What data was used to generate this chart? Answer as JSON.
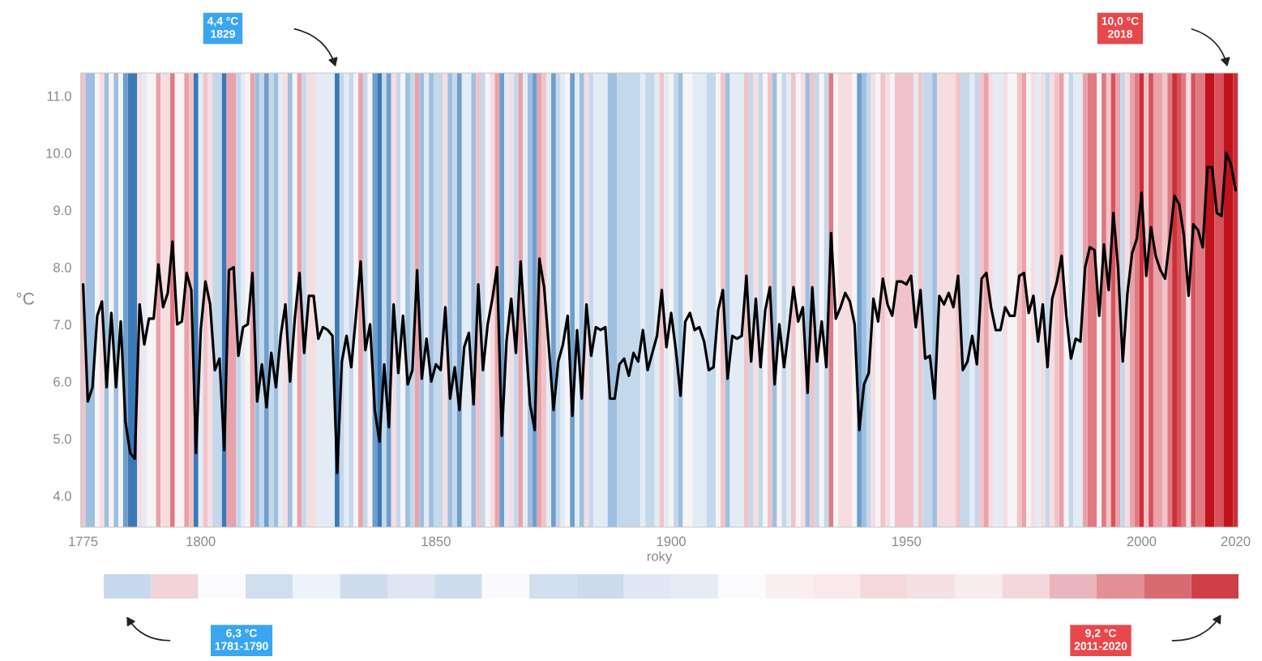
{
  "chart_data": [
    {
      "type": "line",
      "xlabel": "roky",
      "ylabel": "°C",
      "x": [
        1775,
        1776,
        1777,
        1778,
        1779,
        1780,
        1781,
        1782,
        1783,
        1784,
        1785,
        1786,
        1787,
        1788,
        1789,
        1790,
        1791,
        1792,
        1793,
        1794,
        1795,
        1796,
        1797,
        1798,
        1799,
        1800,
        1801,
        1802,
        1803,
        1804,
        1805,
        1806,
        1807,
        1808,
        1809,
        1810,
        1811,
        1812,
        1813,
        1814,
        1815,
        1816,
        1817,
        1818,
        1819,
        1820,
        1821,
        1822,
        1823,
        1824,
        1825,
        1826,
        1827,
        1828,
        1829,
        1830,
        1831,
        1832,
        1833,
        1834,
        1835,
        1836,
        1837,
        1838,
        1839,
        1840,
        1841,
        1842,
        1843,
        1844,
        1845,
        1846,
        1847,
        1848,
        1849,
        1850,
        1851,
        1852,
        1853,
        1854,
        1855,
        1856,
        1857,
        1858,
        1859,
        1860,
        1861,
        1862,
        1863,
        1864,
        1865,
        1866,
        1867,
        1868,
        1869,
        1870,
        1871,
        1872,
        1873,
        1874,
        1875,
        1876,
        1877,
        1878,
        1879,
        1880,
        1881,
        1882,
        1883,
        1884,
        1885,
        1886,
        1887,
        1888,
        1889,
        1890,
        1891,
        1892,
        1893,
        1894,
        1895,
        1896,
        1897,
        1898,
        1899,
        1900,
        1901,
        1902,
        1903,
        1904,
        1905,
        1906,
        1907,
        1908,
        1909,
        1910,
        1911,
        1912,
        1913,
        1914,
        1915,
        1916,
        1917,
        1918,
        1919,
        1920,
        1921,
        1922,
        1923,
        1924,
        1925,
        1926,
        1927,
        1928,
        1929,
        1930,
        1931,
        1932,
        1933,
        1934,
        1935,
        1936,
        1937,
        1938,
        1939,
        1940,
        1941,
        1942,
        1943,
        1944,
        1945,
        1946,
        1947,
        1948,
        1949,
        1950,
        1951,
        1952,
        1953,
        1954,
        1955,
        1956,
        1957,
        1958,
        1959,
        1960,
        1961,
        1962,
        1963,
        1964,
        1965,
        1966,
        1967,
        1968,
        1969,
        1970,
        1971,
        1972,
        1973,
        1974,
        1975,
        1976,
        1977,
        1978,
        1979,
        1980,
        1981,
        1982,
        1983,
        1984,
        1985,
        1986,
        1987,
        1988,
        1989,
        1990,
        1991,
        1992,
        1993,
        1994,
        1995,
        1996,
        1997,
        1998,
        1999,
        2000,
        2001,
        2002,
        2003,
        2004,
        2005,
        2006,
        2007,
        2008,
        2009,
        2010,
        2011,
        2012,
        2013,
        2014,
        2015,
        2016,
        2017,
        2018,
        2019,
        2020
      ],
      "series": [
        {
          "color": "#000000",
          "values": [
            7.7,
            5.65,
            5.9,
            7.15,
            7.4,
            5.9,
            7.2,
            5.9,
            7.05,
            5.3,
            4.75,
            4.65,
            7.35,
            6.65,
            7.1,
            7.1,
            8.05,
            7.3,
            7.55,
            8.45,
            7.0,
            7.05,
            7.9,
            7.6,
            4.75,
            6.9,
            7.75,
            7.35,
            6.2,
            6.4,
            4.8,
            7.95,
            8.0,
            6.45,
            6.95,
            7.0,
            7.9,
            5.65,
            6.3,
            5.55,
            6.5,
            5.9,
            6.8,
            7.35,
            6.0,
            7.1,
            7.9,
            6.5,
            7.5,
            7.5,
            6.75,
            6.95,
            6.9,
            6.8,
            4.4,
            6.35,
            6.8,
            6.25,
            7.15,
            8.1,
            6.55,
            7.0,
            5.5,
            4.95,
            6.3,
            5.2,
            7.35,
            6.15,
            7.15,
            5.95,
            6.2,
            7.95,
            6.05,
            6.75,
            6.0,
            6.3,
            6.2,
            7.3,
            5.7,
            6.25,
            5.5,
            6.6,
            6.85,
            5.6,
            7.7,
            6.2,
            7.0,
            7.45,
            8.0,
            5.05,
            6.7,
            7.45,
            6.5,
            8.1,
            6.85,
            5.6,
            5.15,
            8.15,
            7.65,
            6.6,
            5.5,
            6.35,
            6.65,
            7.15,
            5.4,
            6.9,
            5.7,
            7.35,
            6.45,
            6.95,
            6.9,
            6.95,
            5.7,
            5.7,
            6.3,
            6.4,
            6.1,
            6.5,
            6.35,
            6.9,
            6.2,
            6.5,
            6.8,
            7.6,
            6.6,
            7.2,
            6.55,
            5.75,
            7.05,
            7.2,
            6.9,
            6.95,
            6.7,
            6.2,
            6.25,
            7.25,
            7.6,
            6.05,
            6.8,
            6.75,
            6.8,
            7.85,
            6.35,
            7.45,
            6.25,
            7.25,
            7.65,
            5.95,
            7.0,
            6.25,
            6.9,
            7.65,
            7.05,
            7.3,
            5.8,
            7.65,
            6.35,
            7.05,
            6.25,
            8.6,
            7.1,
            7.3,
            7.55,
            7.4,
            7.0,
            5.15,
            5.95,
            6.15,
            7.45,
            7.05,
            7.8,
            7.35,
            7.15,
            7.75,
            7.75,
            7.7,
            7.85,
            6.95,
            7.6,
            6.4,
            6.45,
            5.7,
            7.5,
            7.35,
            7.55,
            7.3,
            7.85,
            6.2,
            6.35,
            6.8,
            6.3,
            7.8,
            7.9,
            7.3,
            6.9,
            6.9,
            7.3,
            7.15,
            7.15,
            7.85,
            7.9,
            7.2,
            7.5,
            6.7,
            7.35,
            6.25,
            7.45,
            7.75,
            8.2,
            7.15,
            6.4,
            6.75,
            6.7,
            8.0,
            8.35,
            8.3,
            7.15,
            8.4,
            7.6,
            8.95,
            8.0,
            6.35,
            7.55,
            8.25,
            8.5,
            9.3,
            7.85,
            8.7,
            8.2,
            7.95,
            7.8,
            8.5,
            9.25,
            9.1,
            8.55,
            7.5,
            8.75,
            8.65,
            8.35,
            9.75,
            9.75,
            8.95,
            8.9,
            10.0,
            9.8,
            9.35
          ]
        }
      ],
      "xlim": [
        1774.5,
        2020.5
      ],
      "xticks": [
        1775,
        1800,
        1850,
        1900,
        1950,
        2000,
        2020
      ],
      "ylim": [
        3.45,
        11.4
      ],
      "yticks": [
        {
          "value": 4,
          "label": "4.0"
        },
        {
          "value": 5,
          "label": "5.0"
        },
        {
          "value": 6,
          "label": "6.0"
        },
        {
          "value": 7,
          "label": "7.0"
        },
        {
          "value": 8,
          "label": "8.0"
        },
        {
          "value": 9,
          "label": "9.0"
        },
        {
          "value": 10,
          "label": "10.0"
        },
        {
          "value": 11,
          "label": "11.0"
        }
      ],
      "annotations": [
        "4,4 °C\n1829",
        "10,0 °C\n2018"
      ],
      "bands": [
        {
          "axis": "x",
          "from": 1774.5,
          "to": 1775.5,
          "color": "#f1c3c8"
        },
        {
          "axis": "x",
          "from": 1775.5,
          "to": 1777.5,
          "color": "#9dbfe0"
        },
        {
          "axis": "x",
          "from": 1777.5,
          "to": 1778.5,
          "color": "#f7f4f6"
        },
        {
          "axis": "x",
          "from": 1778.5,
          "to": 1779.5,
          "color": "#f5dde1"
        },
        {
          "axis": "x",
          "from": 1779.5,
          "to": 1780.5,
          "color": "#9dbfe0"
        },
        {
          "axis": "x",
          "from": 1780.5,
          "to": 1781.5,
          "color": "#f7f4f6"
        },
        {
          "axis": "x",
          "from": 1781.5,
          "to": 1782.5,
          "color": "#9dbfe0"
        },
        {
          "axis": "x",
          "from": 1782.5,
          "to": 1783.5,
          "color": "#f7f4f6"
        },
        {
          "axis": "x",
          "from": 1783.5,
          "to": 1784.5,
          "color": "#6e9ecc"
        },
        {
          "axis": "x",
          "from": 1784.5,
          "to": 1786.5,
          "color": "#3b78b6"
        },
        {
          "axis": "x",
          "from": 1786.5,
          "to": 1787.5,
          "color": "#f5dde1"
        },
        {
          "axis": "x",
          "from": 1787.5,
          "to": 1788.5,
          "color": "#e3ebf5"
        },
        {
          "axis": "x",
          "from": 1788.5,
          "to": 1790.5,
          "color": "#f7f4f6"
        },
        {
          "axis": "x",
          "from": 1790.5,
          "to": 1791.5,
          "color": "#e9a2a9"
        },
        {
          "axis": "x",
          "from": 1791.5,
          "to": 1793.5,
          "color": "#f5dde1"
        },
        {
          "axis": "x",
          "from": 1793.5,
          "to": 1794.5,
          "color": "#df7a82"
        },
        {
          "axis": "x",
          "from": 1794.5,
          "to": 1796.5,
          "color": "#f7f4f6"
        },
        {
          "axis": "x",
          "from": 1796.5,
          "to": 1797.5,
          "color": "#e9a2a9"
        },
        {
          "axis": "x",
          "from": 1797.5,
          "to": 1798.5,
          "color": "#f1c3c8"
        },
        {
          "axis": "x",
          "from": 1798.5,
          "to": 1799.5,
          "color": "#3b78b6"
        },
        {
          "axis": "x",
          "from": 1799.5,
          "to": 1800.5,
          "color": "#e3ebf5"
        },
        {
          "axis": "x",
          "from": 1800.5,
          "to": 1801.5,
          "color": "#f1c3c8"
        },
        {
          "axis": "x",
          "from": 1801.5,
          "to": 1802.5,
          "color": "#f5dde1"
        },
        {
          "axis": "x",
          "from": 1802.5,
          "to": 1804.5,
          "color": "#c4d8ec"
        },
        {
          "axis": "x",
          "from": 1804.5,
          "to": 1805.5,
          "color": "#3b78b6"
        },
        {
          "axis": "x",
          "from": 1805.5,
          "to": 1807.5,
          "color": "#e9a2a9"
        },
        {
          "axis": "x",
          "from": 1807.5,
          "to": 1808.5,
          "color": "#c4d8ec"
        },
        {
          "axis": "x",
          "from": 1808.5,
          "to": 1809.5,
          "color": "#e3ebf5"
        },
        {
          "axis": "x",
          "from": 1809.5,
          "to": 1810.5,
          "color": "#f7f4f6"
        },
        {
          "axis": "x",
          "from": 1810.5,
          "to": 1811.5,
          "color": "#e9a2a9"
        },
        {
          "axis": "x",
          "from": 1811.5,
          "to": 1812.5,
          "color": "#9dbfe0"
        },
        {
          "axis": "x",
          "from": 1812.5,
          "to": 1813.5,
          "color": "#c4d8ec"
        },
        {
          "axis": "x",
          "from": 1813.5,
          "to": 1814.5,
          "color": "#6e9ecc"
        },
        {
          "axis": "x",
          "from": 1814.5,
          "to": 1815.5,
          "color": "#c4d8ec"
        },
        {
          "axis": "x",
          "from": 1815.5,
          "to": 1816.5,
          "color": "#9dbfe0"
        },
        {
          "axis": "x",
          "from": 1816.5,
          "to": 1817.5,
          "color": "#e3ebf5"
        },
        {
          "axis": "x",
          "from": 1817.5,
          "to": 1818.5,
          "color": "#f5dde1"
        },
        {
          "axis": "x",
          "from": 1818.5,
          "to": 1819.5,
          "color": "#9dbfe0"
        },
        {
          "axis": "x",
          "from": 1819.5,
          "to": 1820.5,
          "color": "#f7f4f6"
        },
        {
          "axis": "x",
          "from": 1820.5,
          "to": 1821.5,
          "color": "#e9a2a9"
        },
        {
          "axis": "x",
          "from": 1821.5,
          "to": 1822.5,
          "color": "#c4d8ec"
        },
        {
          "axis": "x",
          "from": 1822.5,
          "to": 1824.5,
          "color": "#f5dde1"
        },
        {
          "axis": "x",
          "from": 1824.5,
          "to": 1828.5,
          "color": "#e3ebf5"
        },
        {
          "axis": "x",
          "from": 1828.5,
          "to": 1829.5,
          "color": "#3b78b6"
        },
        {
          "axis": "x",
          "from": 1829.5,
          "to": 1830.5,
          "color": "#c4d8ec"
        },
        {
          "axis": "x",
          "from": 1830.5,
          "to": 1831.5,
          "color": "#e3ebf5"
        },
        {
          "axis": "x",
          "from": 1831.5,
          "to": 1832.5,
          "color": "#c4d8ec"
        },
        {
          "axis": "x",
          "from": 1832.5,
          "to": 1833.5,
          "color": "#f7f4f6"
        },
        {
          "axis": "x",
          "from": 1833.5,
          "to": 1834.5,
          "color": "#e9a2a9"
        },
        {
          "axis": "x",
          "from": 1834.5,
          "to": 1835.5,
          "color": "#c4d8ec"
        },
        {
          "axis": "x",
          "from": 1835.5,
          "to": 1836.5,
          "color": "#f7f4f6"
        },
        {
          "axis": "x",
          "from": 1836.5,
          "to": 1837.5,
          "color": "#6e9ecc"
        },
        {
          "axis": "x",
          "from": 1837.5,
          "to": 1838.5,
          "color": "#3b78b6"
        },
        {
          "axis": "x",
          "from": 1838.5,
          "to": 1839.5,
          "color": "#c4d8ec"
        },
        {
          "axis": "x",
          "from": 1839.5,
          "to": 1840.5,
          "color": "#6e9ecc"
        },
        {
          "axis": "x",
          "from": 1840.5,
          "to": 1841.5,
          "color": "#f5dde1"
        },
        {
          "axis": "x",
          "from": 1841.5,
          "to": 1842.5,
          "color": "#c4d8ec"
        },
        {
          "axis": "x",
          "from": 1842.5,
          "to": 1843.5,
          "color": "#f7f4f6"
        },
        {
          "axis": "x",
          "from": 1843.5,
          "to": 1844.5,
          "color": "#9dbfe0"
        },
        {
          "axis": "x",
          "from": 1844.5,
          "to": 1845.5,
          "color": "#c4d8ec"
        },
        {
          "axis": "x",
          "from": 1845.5,
          "to": 1846.5,
          "color": "#e9a2a9"
        },
        {
          "axis": "x",
          "from": 1846.5,
          "to": 1847.5,
          "color": "#9dbfe0"
        },
        {
          "axis": "x",
          "from": 1847.5,
          "to": 1848.5,
          "color": "#e3ebf5"
        },
        {
          "axis": "x",
          "from": 1848.5,
          "to": 1849.5,
          "color": "#9dbfe0"
        },
        {
          "axis": "x",
          "from": 1849.5,
          "to": 1851.5,
          "color": "#c4d8ec"
        },
        {
          "axis": "x",
          "from": 1851.5,
          "to": 1852.5,
          "color": "#f5dde1"
        },
        {
          "axis": "x",
          "from": 1852.5,
          "to": 1853.5,
          "color": "#9dbfe0"
        },
        {
          "axis": "x",
          "from": 1853.5,
          "to": 1854.5,
          "color": "#c4d8ec"
        },
        {
          "axis": "x",
          "from": 1854.5,
          "to": 1855.5,
          "color": "#6e9ecc"
        },
        {
          "axis": "x",
          "from": 1855.5,
          "to": 1857.5,
          "color": "#e3ebf5"
        },
        {
          "axis": "x",
          "from": 1857.5,
          "to": 1858.5,
          "color": "#9dbfe0"
        },
        {
          "axis": "x",
          "from": 1858.5,
          "to": 1859.5,
          "color": "#f1c3c8"
        },
        {
          "axis": "x",
          "from": 1859.5,
          "to": 1860.5,
          "color": "#c4d8ec"
        },
        {
          "axis": "x",
          "from": 1860.5,
          "to": 1861.5,
          "color": "#f7f4f6"
        },
        {
          "axis": "x",
          "from": 1861.5,
          "to": 1862.5,
          "color": "#f5dde1"
        },
        {
          "axis": "x",
          "from": 1862.5,
          "to": 1863.5,
          "color": "#e9a2a9"
        },
        {
          "axis": "x",
          "from": 1863.5,
          "to": 1864.5,
          "color": "#6e9ecc"
        },
        {
          "axis": "x",
          "from": 1864.5,
          "to": 1865.5,
          "color": "#e3ebf5"
        },
        {
          "axis": "x",
          "from": 1865.5,
          "to": 1866.5,
          "color": "#f5dde1"
        },
        {
          "axis": "x",
          "from": 1866.5,
          "to": 1867.5,
          "color": "#c4d8ec"
        },
        {
          "axis": "x",
          "from": 1867.5,
          "to": 1868.5,
          "color": "#e9a2a9"
        },
        {
          "axis": "x",
          "from": 1868.5,
          "to": 1869.5,
          "color": "#e3ebf5"
        },
        {
          "axis": "x",
          "from": 1869.5,
          "to": 1870.5,
          "color": "#9dbfe0"
        },
        {
          "axis": "x",
          "from": 1870.5,
          "to": 1871.5,
          "color": "#6e9ecc"
        },
        {
          "axis": "x",
          "from": 1871.5,
          "to": 1872.5,
          "color": "#e9a2a9"
        },
        {
          "axis": "x",
          "from": 1872.5,
          "to": 1873.5,
          "color": "#f1c3c8"
        },
        {
          "axis": "x",
          "from": 1873.5,
          "to": 1874.5,
          "color": "#e3ebf5"
        },
        {
          "axis": "x",
          "from": 1874.5,
          "to": 1875.5,
          "color": "#6e9ecc"
        },
        {
          "axis": "x",
          "from": 1875.5,
          "to": 1876.5,
          "color": "#c4d8ec"
        },
        {
          "axis": "x",
          "from": 1876.5,
          "to": 1877.5,
          "color": "#e3ebf5"
        },
        {
          "axis": "x",
          "from": 1877.5,
          "to": 1878.5,
          "color": "#f7f4f6"
        },
        {
          "axis": "x",
          "from": 1878.5,
          "to": 1879.5,
          "color": "#6e9ecc"
        },
        {
          "axis": "x",
          "from": 1879.5,
          "to": 1880.5,
          "color": "#e3ebf5"
        },
        {
          "axis": "x",
          "from": 1880.5,
          "to": 1881.5,
          "color": "#9dbfe0"
        },
        {
          "axis": "x",
          "from": 1881.5,
          "to": 1882.5,
          "color": "#f5dde1"
        },
        {
          "axis": "x",
          "from": 1882.5,
          "to": 1883.5,
          "color": "#c4d8ec"
        },
        {
          "axis": "x",
          "from": 1883.5,
          "to": 1886.5,
          "color": "#e3ebf5"
        },
        {
          "axis": "x",
          "from": 1886.5,
          "to": 1888.5,
          "color": "#9dbfe0"
        },
        {
          "axis": "x",
          "from": 1888.5,
          "to": 1893.5,
          "color": "#c4d8ec"
        },
        {
          "axis": "x",
          "from": 1893.5,
          "to": 1894.5,
          "color": "#e3ebf5"
        },
        {
          "axis": "x",
          "from": 1894.5,
          "to": 1896.5,
          "color": "#c4d8ec"
        },
        {
          "axis": "x",
          "from": 1896.5,
          "to": 1897.5,
          "color": "#e3ebf5"
        },
        {
          "axis": "x",
          "from": 1897.5,
          "to": 1898.5,
          "color": "#f1c3c8"
        },
        {
          "axis": "x",
          "from": 1898.5,
          "to": 1899.5,
          "color": "#e3ebf5"
        },
        {
          "axis": "x",
          "from": 1899.5,
          "to": 1900.5,
          "color": "#f7f4f6"
        },
        {
          "axis": "x",
          "from": 1900.5,
          "to": 1901.5,
          "color": "#c4d8ec"
        },
        {
          "axis": "x",
          "from": 1901.5,
          "to": 1902.5,
          "color": "#9dbfe0"
        },
        {
          "axis": "x",
          "from": 1902.5,
          "to": 1904.5,
          "color": "#f7f4f6"
        },
        {
          "axis": "x",
          "from": 1904.5,
          "to": 1907.5,
          "color": "#e3ebf5"
        },
        {
          "axis": "x",
          "from": 1907.5,
          "to": 1909.5,
          "color": "#c4d8ec"
        },
        {
          "axis": "x",
          "from": 1909.5,
          "to": 1910.5,
          "color": "#f7f4f6"
        },
        {
          "axis": "x",
          "from": 1910.5,
          "to": 1911.5,
          "color": "#f1c3c8"
        },
        {
          "axis": "x",
          "from": 1911.5,
          "to": 1912.5,
          "color": "#9dbfe0"
        },
        {
          "axis": "x",
          "from": 1912.5,
          "to": 1915.5,
          "color": "#e3ebf5"
        },
        {
          "axis": "x",
          "from": 1915.5,
          "to": 1916.5,
          "color": "#f1c3c8"
        },
        {
          "axis": "x",
          "from": 1916.5,
          "to": 1917.5,
          "color": "#c4d8ec"
        },
        {
          "axis": "x",
          "from": 1917.5,
          "to": 1918.5,
          "color": "#f5dde1"
        },
        {
          "axis": "x",
          "from": 1918.5,
          "to": 1919.5,
          "color": "#c4d8ec"
        },
        {
          "axis": "x",
          "from": 1919.5,
          "to": 1920.5,
          "color": "#f7f4f6"
        },
        {
          "axis": "x",
          "from": 1920.5,
          "to": 1921.5,
          "color": "#f1c3c8"
        },
        {
          "axis": "x",
          "from": 1921.5,
          "to": 1922.5,
          "color": "#9dbfe0"
        },
        {
          "axis": "x",
          "from": 1922.5,
          "to": 1923.5,
          "color": "#f7f4f6"
        },
        {
          "axis": "x",
          "from": 1923.5,
          "to": 1924.5,
          "color": "#c4d8ec"
        },
        {
          "axis": "x",
          "from": 1924.5,
          "to": 1925.5,
          "color": "#e3ebf5"
        },
        {
          "axis": "x",
          "from": 1925.5,
          "to": 1926.5,
          "color": "#f1c3c8"
        },
        {
          "axis": "x",
          "from": 1926.5,
          "to": 1927.5,
          "color": "#f7f4f6"
        },
        {
          "axis": "x",
          "from": 1927.5,
          "to": 1928.5,
          "color": "#f5dde1"
        },
        {
          "axis": "x",
          "from": 1928.5,
          "to": 1929.5,
          "color": "#9dbfe0"
        },
        {
          "axis": "x",
          "from": 1929.5,
          "to": 1930.5,
          "color": "#f1c3c8"
        },
        {
          "axis": "x",
          "from": 1930.5,
          "to": 1931.5,
          "color": "#c4d8ec"
        },
        {
          "axis": "x",
          "from": 1931.5,
          "to": 1932.5,
          "color": "#f7f4f6"
        },
        {
          "axis": "x",
          "from": 1932.5,
          "to": 1933.5,
          "color": "#c4d8ec"
        },
        {
          "axis": "x",
          "from": 1933.5,
          "to": 1934.5,
          "color": "#df7a82"
        },
        {
          "axis": "x",
          "from": 1934.5,
          "to": 1935.5,
          "color": "#f7f4f6"
        },
        {
          "axis": "x",
          "from": 1935.5,
          "to": 1938.5,
          "color": "#f5dde1"
        },
        {
          "axis": "x",
          "from": 1938.5,
          "to": 1939.5,
          "color": "#f7f4f6"
        },
        {
          "axis": "x",
          "from": 1939.5,
          "to": 1940.5,
          "color": "#6e9ecc"
        },
        {
          "axis": "x",
          "from": 1940.5,
          "to": 1941.5,
          "color": "#9dbfe0"
        },
        {
          "axis": "x",
          "from": 1941.5,
          "to": 1942.5,
          "color": "#c4d8ec"
        },
        {
          "axis": "x",
          "from": 1942.5,
          "to": 1943.5,
          "color": "#f5dde1"
        },
        {
          "axis": "x",
          "from": 1943.5,
          "to": 1944.5,
          "color": "#f7f4f6"
        },
        {
          "axis": "x",
          "from": 1944.5,
          "to": 1945.5,
          "color": "#f1c3c8"
        },
        {
          "axis": "x",
          "from": 1945.5,
          "to": 1946.5,
          "color": "#f5dde1"
        },
        {
          "axis": "x",
          "from": 1946.5,
          "to": 1947.5,
          "color": "#f7f4f6"
        },
        {
          "axis": "x",
          "from": 1947.5,
          "to": 1951.5,
          "color": "#f1c3c8"
        },
        {
          "axis": "x",
          "from": 1951.5,
          "to": 1952.5,
          "color": "#e3ebf5"
        },
        {
          "axis": "x",
          "from": 1952.5,
          "to": 1953.5,
          "color": "#f1c3c8"
        },
        {
          "axis": "x",
          "from": 1953.5,
          "to": 1955.5,
          "color": "#c4d8ec"
        },
        {
          "axis": "x",
          "from": 1955.5,
          "to": 1956.5,
          "color": "#9dbfe0"
        },
        {
          "axis": "x",
          "from": 1956.5,
          "to": 1960.5,
          "color": "#f5dde1"
        },
        {
          "axis": "x",
          "from": 1960.5,
          "to": 1961.5,
          "color": "#f1c3c8"
        },
        {
          "axis": "x",
          "from": 1961.5,
          "to": 1963.5,
          "color": "#c4d8ec"
        },
        {
          "axis": "x",
          "from": 1963.5,
          "to": 1964.5,
          "color": "#e3ebf5"
        },
        {
          "axis": "x",
          "from": 1964.5,
          "to": 1965.5,
          "color": "#c4d8ec"
        },
        {
          "axis": "x",
          "from": 1965.5,
          "to": 1966.5,
          "color": "#f1c3c8"
        },
        {
          "axis": "x",
          "from": 1966.5,
          "to": 1967.5,
          "color": "#e9a2a9"
        },
        {
          "axis": "x",
          "from": 1967.5,
          "to": 1968.5,
          "color": "#f5dde1"
        },
        {
          "axis": "x",
          "from": 1968.5,
          "to": 1970.5,
          "color": "#e3ebf5"
        },
        {
          "axis": "x",
          "from": 1970.5,
          "to": 1971.5,
          "color": "#f5dde1"
        },
        {
          "axis": "x",
          "from": 1971.5,
          "to": 1973.5,
          "color": "#f7f4f6"
        },
        {
          "axis": "x",
          "from": 1973.5,
          "to": 1974.5,
          "color": "#f1c3c8"
        },
        {
          "axis": "x",
          "from": 1974.5,
          "to": 1975.5,
          "color": "#e9a2a9"
        },
        {
          "axis": "x",
          "from": 1975.5,
          "to": 1976.5,
          "color": "#f7f4f6"
        },
        {
          "axis": "x",
          "from": 1976.5,
          "to": 1977.5,
          "color": "#f5dde1"
        },
        {
          "axis": "x",
          "from": 1977.5,
          "to": 1978.5,
          "color": "#e3ebf5"
        },
        {
          "axis": "x",
          "from": 1978.5,
          "to": 1979.5,
          "color": "#f5dde1"
        },
        {
          "axis": "x",
          "from": 1979.5,
          "to": 1980.5,
          "color": "#c4d8ec"
        },
        {
          "axis": "x",
          "from": 1980.5,
          "to": 1981.5,
          "color": "#f5dde1"
        },
        {
          "axis": "x",
          "from": 1981.5,
          "to": 1982.5,
          "color": "#f1c3c8"
        },
        {
          "axis": "x",
          "from": 1982.5,
          "to": 1983.5,
          "color": "#e9a2a9"
        },
        {
          "axis": "x",
          "from": 1983.5,
          "to": 1984.5,
          "color": "#f7f4f6"
        },
        {
          "axis": "x",
          "from": 1984.5,
          "to": 1985.5,
          "color": "#c4d8ec"
        },
        {
          "axis": "x",
          "from": 1985.5,
          "to": 1987.5,
          "color": "#e3ebf5"
        },
        {
          "axis": "x",
          "from": 1987.5,
          "to": 1988.5,
          "color": "#e9a2a9"
        },
        {
          "axis": "x",
          "from": 1988.5,
          "to": 1990.5,
          "color": "#df7a82"
        },
        {
          "axis": "x",
          "from": 1990.5,
          "to": 1991.5,
          "color": "#f7f4f6"
        },
        {
          "axis": "x",
          "from": 1991.5,
          "to": 1992.5,
          "color": "#df7a82"
        },
        {
          "axis": "x",
          "from": 1992.5,
          "to": 1993.5,
          "color": "#f1c3c8"
        },
        {
          "axis": "x",
          "from": 1993.5,
          "to": 1994.5,
          "color": "#d8525b"
        },
        {
          "axis": "x",
          "from": 1994.5,
          "to": 1995.5,
          "color": "#e9a2a9"
        },
        {
          "axis": "x",
          "from": 1995.5,
          "to": 1996.5,
          "color": "#c4d8ec"
        },
        {
          "axis": "x",
          "from": 1996.5,
          "to": 1997.5,
          "color": "#f5dde1"
        },
        {
          "axis": "x",
          "from": 1997.5,
          "to": 1998.5,
          "color": "#e9a2a9"
        },
        {
          "axis": "x",
          "from": 1998.5,
          "to": 1999.5,
          "color": "#df7a82"
        },
        {
          "axis": "x",
          "from": 1999.5,
          "to": 2000.5,
          "color": "#cd2e37"
        },
        {
          "axis": "x",
          "from": 2000.5,
          "to": 2001.5,
          "color": "#f1c3c8"
        },
        {
          "axis": "x",
          "from": 2001.5,
          "to": 2002.5,
          "color": "#d8525b"
        },
        {
          "axis": "x",
          "from": 2002.5,
          "to": 2004.5,
          "color": "#e9a2a9"
        },
        {
          "axis": "x",
          "from": 2004.5,
          "to": 2005.5,
          "color": "#f1c3c8"
        },
        {
          "axis": "x",
          "from": 2005.5,
          "to": 2006.5,
          "color": "#df7a82"
        },
        {
          "axis": "x",
          "from": 2006.5,
          "to": 2007.5,
          "color": "#cd2e37"
        },
        {
          "axis": "x",
          "from": 2007.5,
          "to": 2008.5,
          "color": "#d8525b"
        },
        {
          "axis": "x",
          "from": 2008.5,
          "to": 2009.5,
          "color": "#df7a82"
        },
        {
          "axis": "x",
          "from": 2009.5,
          "to": 2010.5,
          "color": "#f5dde1"
        },
        {
          "axis": "x",
          "from": 2010.5,
          "to": 2011.5,
          "color": "#d8525b"
        },
        {
          "axis": "x",
          "from": 2011.5,
          "to": 2013.5,
          "color": "#df7a82"
        },
        {
          "axis": "x",
          "from": 2013.5,
          "to": 2015.5,
          "color": "#bf121b"
        },
        {
          "axis": "x",
          "from": 2015.5,
          "to": 2017.5,
          "color": "#d8525b"
        },
        {
          "axis": "x",
          "from": 2017.5,
          "to": 2019.5,
          "color": "#bf121b"
        },
        {
          "axis": "x",
          "from": 2019.5,
          "to": 2020.5,
          "color": "#cd2e37"
        }
      ]
    },
    {
      "type": "other",
      "annotations": [
        "6,3 °C\n1781-1790",
        "9,2 °C\n2011-2020"
      ]
    }
  ]
}
